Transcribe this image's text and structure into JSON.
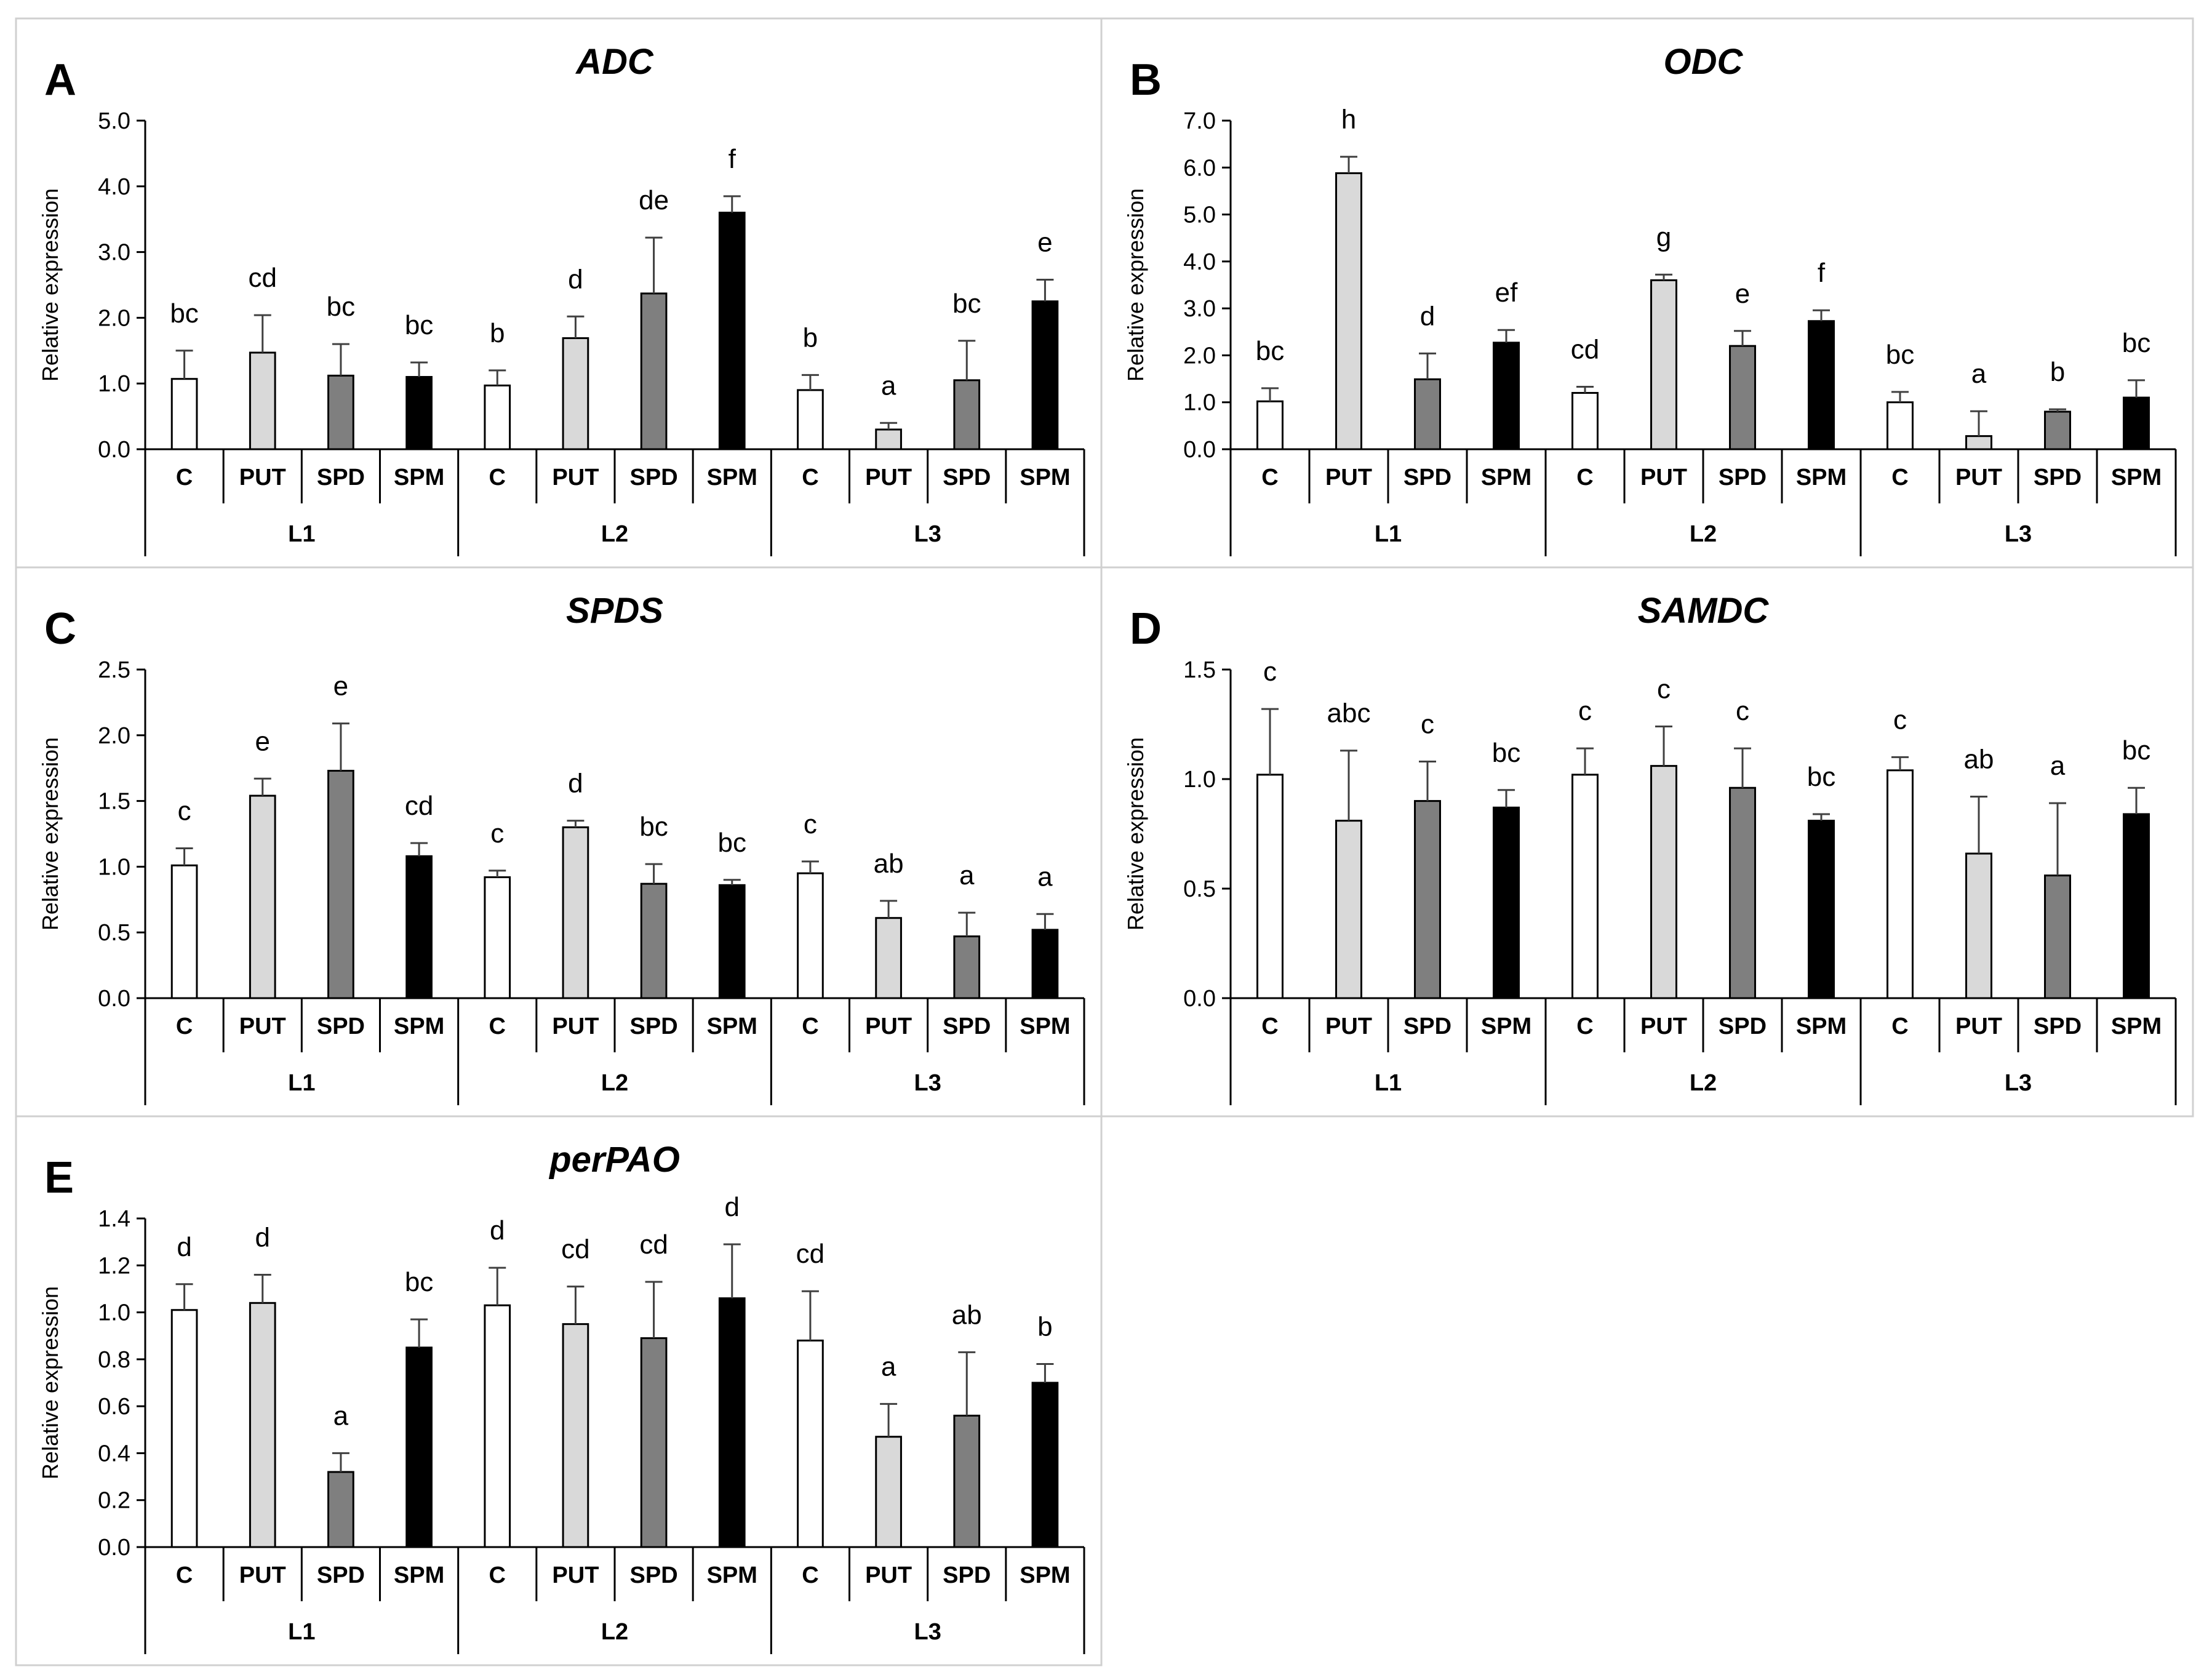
{
  "chart_data": [
    {
      "type": "bar",
      "panel_letter": "A",
      "title": "ADC",
      "ylabel": "Relative expression",
      "ylim": [
        0,
        5
      ],
      "yticks": [
        "0.0",
        "1.0",
        "2.0",
        "3.0",
        "4.0",
        "5.0"
      ],
      "groups": [
        "L1",
        "L2",
        "L3"
      ],
      "categories": [
        "C",
        "PUT",
        "SPD",
        "SPM"
      ],
      "series_colors": [
        "#ffffff",
        "#d9d9d9",
        "#7f7f7f",
        "#000000"
      ],
      "values": [
        [
          1.07,
          1.47,
          1.12,
          1.1
        ],
        [
          0.97,
          1.69,
          2.37,
          3.6
        ],
        [
          0.9,
          0.3,
          1.05,
          2.25
        ]
      ],
      "errors": [
        [
          0.43,
          0.57,
          0.48,
          0.22
        ],
        [
          0.23,
          0.33,
          0.85,
          0.25
        ],
        [
          0.23,
          0.1,
          0.6,
          0.33
        ]
      ],
      "letters": [
        [
          "bc",
          "cd",
          "bc",
          "bc"
        ],
        [
          "b",
          "d",
          "de",
          "f"
        ],
        [
          "b",
          "a",
          "bc",
          "e"
        ]
      ]
    },
    {
      "type": "bar",
      "panel_letter": "B",
      "title": "ODC",
      "ylabel": "Relative expression",
      "ylim": [
        0,
        7
      ],
      "yticks": [
        "0.0",
        "1.0",
        "2.0",
        "3.0",
        "4.0",
        "5.0",
        "6.0",
        "7.0"
      ],
      "groups": [
        "L1",
        "L2",
        "L3"
      ],
      "categories": [
        "C",
        "PUT",
        "SPD",
        "SPM"
      ],
      "series_colors": [
        "#ffffff",
        "#d9d9d9",
        "#7f7f7f",
        "#000000"
      ],
      "values": [
        [
          1.02,
          5.88,
          1.49,
          2.27
        ],
        [
          1.2,
          3.6,
          2.2,
          2.73
        ],
        [
          1.0,
          0.28,
          0.8,
          1.1
        ]
      ],
      "errors": [
        [
          0.28,
          0.35,
          0.55,
          0.27
        ],
        [
          0.13,
          0.12,
          0.32,
          0.23
        ],
        [
          0.22,
          0.53,
          0.05,
          0.37
        ]
      ],
      "letters": [
        [
          "bc",
          "h",
          "d",
          "ef"
        ],
        [
          "cd",
          "g",
          "e",
          "f"
        ],
        [
          "bc",
          "a",
          "b",
          "bc"
        ]
      ]
    },
    {
      "type": "bar",
      "panel_letter": "C",
      "title": "SPDS",
      "ylabel": "Relative expression",
      "ylim": [
        0,
        2.5
      ],
      "yticks": [
        "0.0",
        "0.5",
        "1.0",
        "1.5",
        "2.0",
        "2.5"
      ],
      "groups": [
        "L1",
        "L2",
        "L3"
      ],
      "categories": [
        "C",
        "PUT",
        "SPD",
        "SPM"
      ],
      "series_colors": [
        "#ffffff",
        "#d9d9d9",
        "#7f7f7f",
        "#000000"
      ],
      "values": [
        [
          1.01,
          1.54,
          1.73,
          1.08
        ],
        [
          0.92,
          1.3,
          0.87,
          0.86
        ],
        [
          0.95,
          0.61,
          0.47,
          0.52
        ]
      ],
      "errors": [
        [
          0.13,
          0.13,
          0.36,
          0.1
        ],
        [
          0.05,
          0.05,
          0.15,
          0.04
        ],
        [
          0.09,
          0.13,
          0.18,
          0.12
        ]
      ],
      "letters": [
        [
          "c",
          "e",
          "e",
          "cd"
        ],
        [
          "c",
          "d",
          "bc",
          "bc"
        ],
        [
          "c",
          "ab",
          "a",
          "a"
        ]
      ]
    },
    {
      "type": "bar",
      "panel_letter": "D",
      "title": "SAMDC",
      "ylabel": "Relative expression",
      "ylim": [
        0,
        1.5
      ],
      "yticks": [
        "0.0",
        "0.5",
        "1.0",
        "1.5"
      ],
      "groups": [
        "L1",
        "L2",
        "L3"
      ],
      "categories": [
        "C",
        "PUT",
        "SPD",
        "SPM"
      ],
      "series_colors": [
        "#ffffff",
        "#d9d9d9",
        "#7f7f7f",
        "#000000"
      ],
      "values": [
        [
          1.02,
          0.81,
          0.9,
          0.87
        ],
        [
          1.02,
          1.06,
          0.96,
          0.81
        ],
        [
          1.04,
          0.66,
          0.56,
          0.84
        ]
      ],
      "errors": [
        [
          0.3,
          0.32,
          0.18,
          0.08
        ],
        [
          0.12,
          0.18,
          0.18,
          0.03
        ],
        [
          0.06,
          0.26,
          0.33,
          0.12
        ]
      ],
      "letters": [
        [
          "c",
          "abc",
          "c",
          "bc"
        ],
        [
          "c",
          "c",
          "c",
          "bc"
        ],
        [
          "c",
          "ab",
          "a",
          "bc"
        ]
      ]
    },
    {
      "type": "bar",
      "panel_letter": "E",
      "title": "perPAO",
      "ylabel": "Relative expression",
      "ylim": [
        0,
        1.4
      ],
      "yticks": [
        "0.0",
        "0.2",
        "0.4",
        "0.6",
        "0.8",
        "1.0",
        "1.2",
        "1.4"
      ],
      "groups": [
        "L1",
        "L2",
        "L3"
      ],
      "categories": [
        "C",
        "PUT",
        "SPD",
        "SPM"
      ],
      "series_colors": [
        "#ffffff",
        "#d9d9d9",
        "#7f7f7f",
        "#000000"
      ],
      "values": [
        [
          1.01,
          1.04,
          0.32,
          0.85
        ],
        [
          1.03,
          0.95,
          0.89,
          1.06
        ],
        [
          0.88,
          0.47,
          0.56,
          0.7
        ]
      ],
      "errors": [
        [
          0.11,
          0.12,
          0.08,
          0.12
        ],
        [
          0.16,
          0.16,
          0.24,
          0.23
        ],
        [
          0.21,
          0.14,
          0.27,
          0.08
        ]
      ],
      "letters": [
        [
          "d",
          "d",
          "a",
          "bc"
        ],
        [
          "d",
          "cd",
          "cd",
          "d"
        ],
        [
          "cd",
          "a",
          "ab",
          "b"
        ]
      ]
    }
  ]
}
